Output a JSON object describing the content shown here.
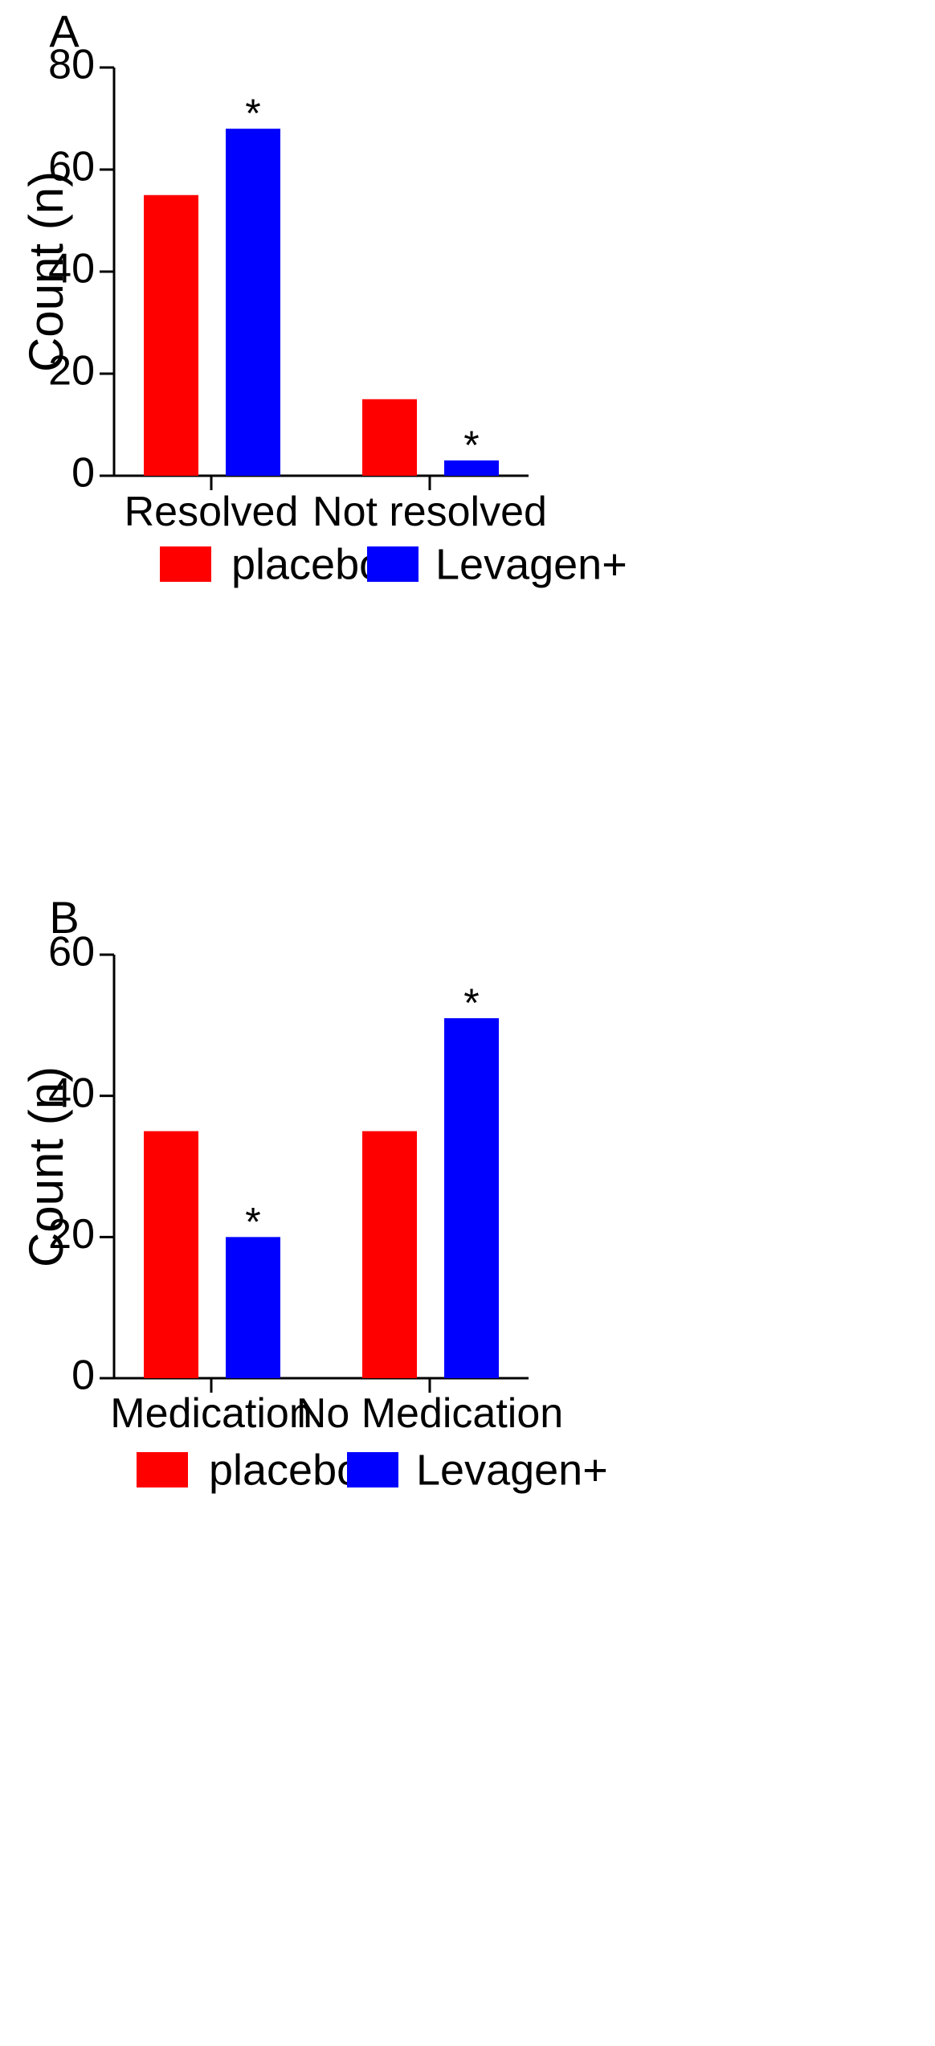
{
  "colors": {
    "placebo": "#ff0000",
    "levagen": "#0000ff",
    "axis": "#000000"
  },
  "chart_data": [
    {
      "type": "bar",
      "panel_label": "A",
      "ylabel": "Count (n)",
      "ylim": [
        0,
        80
      ],
      "yticks": [
        0,
        20,
        40,
        60,
        80
      ],
      "categories": [
        "Resolved",
        "Not resolved"
      ],
      "series": [
        {
          "name": "placebo",
          "color": "#ff0000",
          "values": [
            55,
            15
          ],
          "annotations": [
            "",
            ""
          ]
        },
        {
          "name": "Levagen+",
          "color": "#0000ff",
          "values": [
            68,
            3
          ],
          "annotations": [
            "*",
            "*"
          ]
        }
      ],
      "legend": {
        "position": "bottom",
        "entries": [
          "placebo",
          "Levagen+"
        ]
      },
      "grid": false
    },
    {
      "type": "bar",
      "panel_label": "B",
      "ylabel": "Count (n)",
      "ylim": [
        0,
        60
      ],
      "yticks": [
        0,
        20,
        40,
        60
      ],
      "categories": [
        "Medication",
        "No Medication"
      ],
      "series": [
        {
          "name": "placebo",
          "color": "#ff0000",
          "values": [
            35,
            35
          ],
          "annotations": [
            "",
            ""
          ]
        },
        {
          "name": "Levagen+",
          "color": "#0000ff",
          "values": [
            20,
            51
          ],
          "annotations": [
            "*",
            "*"
          ]
        }
      ],
      "legend": {
        "position": "bottom",
        "entries": [
          "placebo",
          "Levagen+"
        ]
      },
      "grid": false
    }
  ]
}
